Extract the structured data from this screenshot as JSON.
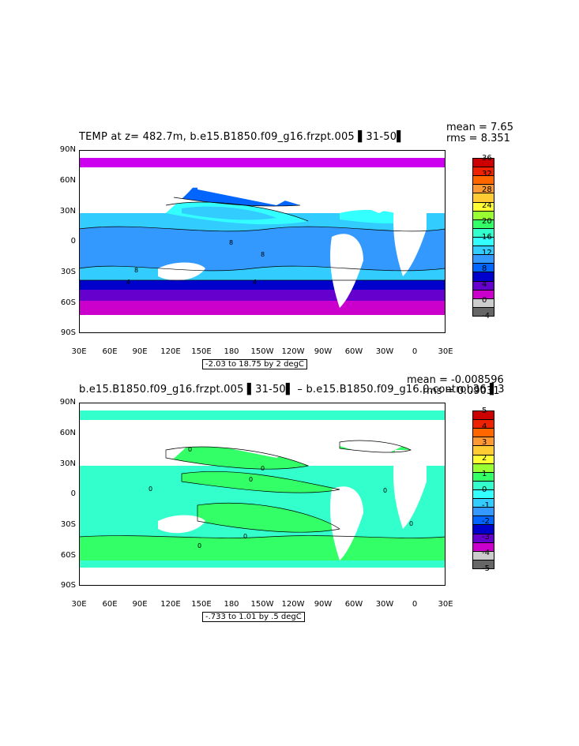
{
  "top": {
    "title": "TEMP at z= 482.7m, b.e15.B1850.f09_g16.frzpt.005 ▌31-50▌",
    "mean": "mean = 7.65",
    "rms": "rms = 8.351",
    "range": "-2.03 to 18.75 by 2 degC",
    "ylabels": [
      "90N",
      "60N",
      "30N",
      "0",
      "30S",
      "60S",
      "90S"
    ],
    "xlabels": [
      "30E",
      "60E",
      "90E",
      "120E",
      "150E",
      "180",
      "150W",
      "120W",
      "90W",
      "60W",
      "30W",
      "0",
      "30E"
    ],
    "colorbar_labels": [
      "36",
      "32",
      "28",
      "24",
      "20",
      "16",
      "12",
      "8",
      "4",
      "0",
      "-4"
    ],
    "colorbar_colors": [
      "#cc0000",
      "#ee2200",
      "#ff6600",
      "#ff9933",
      "#ffcc33",
      "#ffff33",
      "#99ff33",
      "#33ff66",
      "#33ffcc",
      "#33ffff",
      "#33ccff",
      "#3399ff",
      "#0066ff",
      "#0000cc",
      "#6600cc",
      "#cc00cc",
      "#cccccc",
      "#666666"
    ],
    "contour_labels": [
      "8",
      "8",
      "8",
      "4",
      "4"
    ]
  },
  "bottom": {
    "title": "b.e15.B1850.f09_g16.frzpt.005 ▌31-50▌ – b.e15.B1850.f09_g16.0.control.36 ▌3",
    "mean": "mean = -0.008596",
    "rms": "rms = 0.09031",
    "range": "-.733 to 1.01 by .5 degC",
    "ylabels": [
      "90N",
      "60N",
      "30N",
      "0",
      "30S",
      "60S",
      "90S"
    ],
    "xlabels": [
      "30E",
      "60E",
      "90E",
      "120E",
      "150E",
      "180",
      "150W",
      "120W",
      "90W",
      "60W",
      "30W",
      "0",
      "30E"
    ],
    "colorbar_labels": [
      "5",
      "4",
      "3",
      "2",
      "1",
      "0",
      "-1",
      "-2",
      "-3",
      "-4",
      "-5"
    ],
    "colorbar_colors": [
      "#cc0000",
      "#ee2200",
      "#ff6600",
      "#ff9933",
      "#ffcc33",
      "#ffff33",
      "#99ff33",
      "#33ff66",
      "#33ffcc",
      "#33ffff",
      "#33ccff",
      "#3399ff",
      "#0066ff",
      "#0000cc",
      "#6600cc",
      "#cc00cc",
      "#cccccc",
      "#666666"
    ],
    "contour_labels": [
      "0",
      "0",
      "0",
      "0",
      "0",
      "0",
      "0",
      "0"
    ]
  }
}
